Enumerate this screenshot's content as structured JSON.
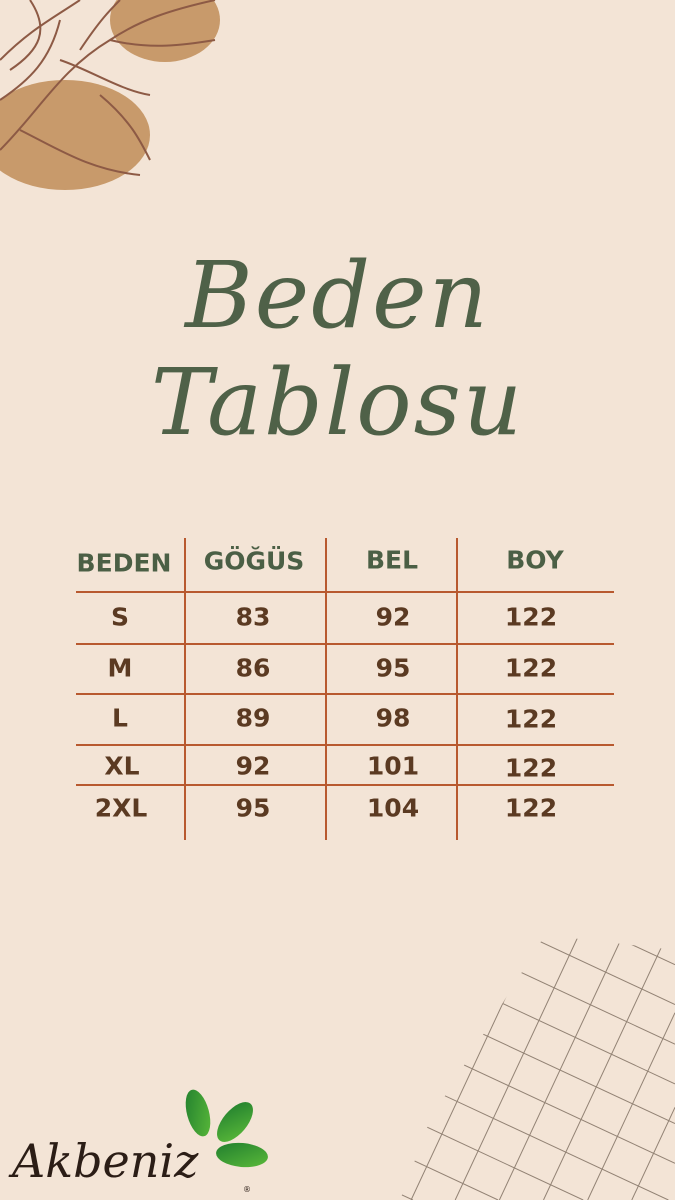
{
  "title": {
    "line1": "Beden",
    "line2": "Tablosu"
  },
  "table": {
    "headers": [
      "BEDEN",
      "GÖĞÜS",
      "BEL",
      "BOY"
    ],
    "rows": [
      [
        "S",
        "83",
        "92",
        "122"
      ],
      [
        "M",
        "86",
        "95",
        "122"
      ],
      [
        "L",
        "89",
        "98",
        "122"
      ],
      [
        "XL",
        "92",
        "101",
        "122"
      ],
      [
        "2XL",
        "95",
        "104",
        "122"
      ]
    ]
  },
  "logo": {
    "text": "Akbeniz",
    "mark": "®"
  },
  "colors": {
    "background": "#f3e4d6",
    "heading": "#4b5f45",
    "values": "#5b3a22",
    "lines": "#b8592f",
    "logo_green": "#2f9a3a"
  }
}
